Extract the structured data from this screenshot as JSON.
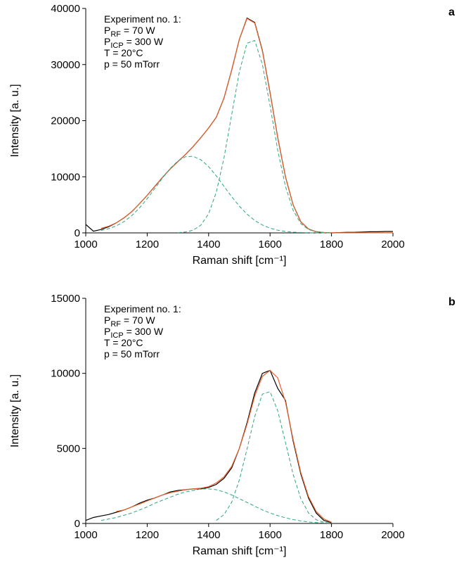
{
  "chart_data": [
    {
      "type": "line",
      "panel_label": "a",
      "x_label": "Raman shift [cm⁻¹]",
      "y_label": "Intensity [a. u.]",
      "annotation": [
        "Experiment no. 1:",
        {
          "main": "P",
          "sub": "RF",
          "rest": " = 70 W"
        },
        {
          "main": "P",
          "sub": "ICP",
          "rest": " = 300 W"
        },
        "T = 20°C",
        "p = 50 mTorr"
      ],
      "xlim": [
        1000,
        2000
      ],
      "xticks": [
        1000,
        1200,
        1400,
        1600,
        1800,
        2000
      ],
      "ylim": [
        0,
        40000
      ],
      "yticks": [
        0,
        10000,
        20000,
        30000,
        40000
      ],
      "x": [
        1000,
        1025,
        1050,
        1075,
        1100,
        1125,
        1150,
        1175,
        1200,
        1225,
        1250,
        1275,
        1300,
        1325,
        1350,
        1375,
        1400,
        1425,
        1450,
        1475,
        1500,
        1525,
        1550,
        1575,
        1600,
        1625,
        1650,
        1675,
        1700,
        1725,
        1750,
        1775,
        1800,
        1825,
        1850,
        1875,
        1900,
        1925,
        1950,
        1975,
        2000
      ],
      "series": [
        {
          "style": "solid",
          "color": "#000000",
          "values": [
            1500,
            300,
            600,
            1100,
            1800,
            2700,
            3800,
            5200,
            6700,
            8300,
            9900,
            11400,
            12700,
            14000,
            15400,
            17000,
            18700,
            20600,
            24000,
            29000,
            34500,
            38300,
            37500,
            32500,
            25000,
            17000,
            10000,
            5000,
            2000,
            700,
            200,
            50,
            0,
            50,
            100,
            100,
            150,
            200,
            200,
            250,
            250
          ]
        },
        {
          "style": "solid",
          "color": "#e8602c",
          "values": [
            null,
            null,
            800,
            1200,
            1800,
            2700,
            3800,
            5200,
            6700,
            8300,
            9900,
            11400,
            12700,
            14000,
            15400,
            17000,
            18700,
            20600,
            24000,
            29000,
            34500,
            38200,
            37400,
            32400,
            24900,
            17000,
            10000,
            5000,
            2000,
            700,
            200,
            60,
            20,
            10,
            10,
            10,
            10,
            10,
            10,
            10,
            10
          ]
        },
        {
          "style": "dashed",
          "color": "#2ca87a",
          "values": [
            null,
            null,
            425,
            750,
            1270,
            2030,
            3080,
            4450,
            6090,
            7930,
            9800,
            11500,
            12830,
            13580,
            13640,
            13020,
            11810,
            10170,
            8310,
            6450,
            4760,
            3330,
            2210,
            1400,
            840,
            480,
            260,
            130,
            65,
            30,
            15,
            5,
            2,
            null,
            null,
            null,
            null,
            null,
            null,
            null,
            null
          ]
        },
        {
          "style": "dashed",
          "color": "#2ca87a",
          "values": [
            null,
            null,
            null,
            null,
            null,
            null,
            null,
            null,
            null,
            null,
            null,
            null,
            38,
            146,
            485,
            1390,
            3410,
            7250,
            13300,
            21050,
            28700,
            33800,
            34290,
            30020,
            22660,
            14750,
            8290,
            4020,
            1670,
            600,
            190,
            50,
            10,
            null,
            null,
            null,
            null,
            null,
            null,
            null,
            null
          ]
        }
      ]
    },
    {
      "type": "line",
      "panel_label": "b",
      "x_label": "Raman shift [cm⁻¹]",
      "y_label": "Intensity [a. u.]",
      "annotation": [
        "Experiment no. 1:",
        {
          "main": "P",
          "sub": "RF",
          "rest": " = 70 W"
        },
        {
          "main": "P",
          "sub": "ICP",
          "rest": " = 300 W"
        },
        "T = 20°C",
        "p = 50 mTorr"
      ],
      "xlim": [
        1000,
        2000
      ],
      "xticks": [
        1000,
        1200,
        1400,
        1600,
        1800,
        2000
      ],
      "ylim": [
        0,
        15000
      ],
      "yticks": [
        0,
        5000,
        10000,
        15000
      ],
      "x": [
        1000,
        1025,
        1050,
        1075,
        1100,
        1125,
        1150,
        1175,
        1200,
        1225,
        1250,
        1275,
        1300,
        1325,
        1350,
        1375,
        1400,
        1425,
        1450,
        1475,
        1500,
        1525,
        1550,
        1575,
        1600,
        1625,
        1650,
        1675,
        1700,
        1725,
        1750,
        1775,
        1800,
        1825
      ],
      "series": [
        {
          "style": "solid",
          "color": "#000000",
          "values": [
            200,
            400,
            500,
            600,
            750,
            900,
            1100,
            1350,
            1550,
            1700,
            1900,
            2100,
            2200,
            2250,
            2300,
            2300,
            2400,
            2600,
            3000,
            3700,
            5000,
            6700,
            8700,
            10000,
            10200,
            9000,
            8200,
            5500,
            3300,
            1700,
            700,
            200,
            50,
            null
          ]
        },
        {
          "style": "solid",
          "color": "#e8602c",
          "values": [
            null,
            null,
            null,
            null,
            800,
            900,
            1100,
            1300,
            1500,
            1700,
            1900,
            2050,
            2150,
            2250,
            2300,
            2350,
            2450,
            2700,
            3100,
            3800,
            5000,
            6600,
            8500,
            9800,
            10200,
            9700,
            8100,
            5600,
            3400,
            1800,
            800,
            300,
            80,
            null
          ]
        },
        {
          "style": "dashed",
          "color": "#2ca87a",
          "values": [
            null,
            null,
            200,
            300,
            400,
            550,
            700,
            900,
            1100,
            1350,
            1550,
            1750,
            1950,
            2100,
            2200,
            2300,
            2300,
            2250,
            2100,
            1900,
            1650,
            1400,
            1150,
            900,
            700,
            520,
            380,
            260,
            170,
            100,
            60,
            30,
            10,
            null
          ]
        },
        {
          "style": "dashed",
          "color": "#2ca87a",
          "values": [
            null,
            null,
            null,
            null,
            null,
            null,
            null,
            null,
            null,
            null,
            null,
            null,
            null,
            null,
            null,
            null,
            null,
            200,
            585,
            1410,
            2890,
            4950,
            7130,
            8620,
            8780,
            7510,
            5400,
            3270,
            1660,
            710,
            250,
            75,
            20,
            null
          ]
        }
      ]
    }
  ]
}
